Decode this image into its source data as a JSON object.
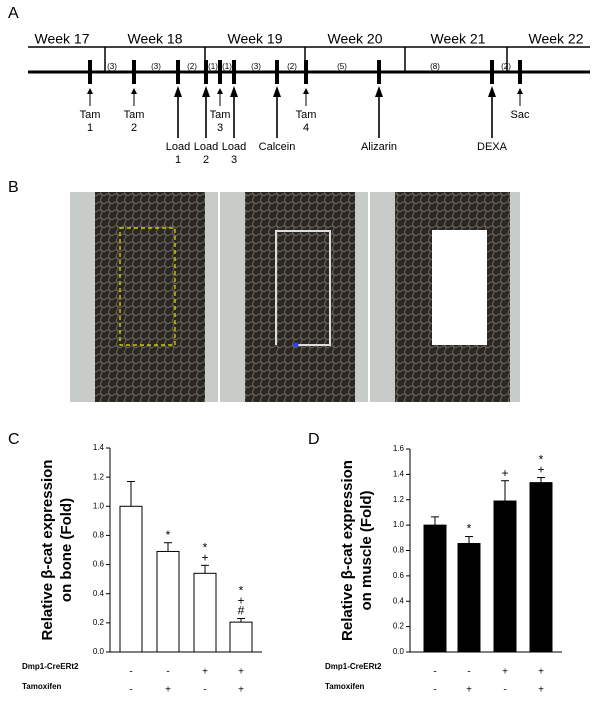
{
  "timeline": {
    "panel_label": "A",
    "weeks": [
      "Week 17",
      "Week 18",
      "Week 19",
      "Week 20",
      "Week 21",
      "Week 22"
    ],
    "intervals": [
      "(3)",
      "(3)",
      "(2)",
      "(1)",
      "(1)",
      "(3)",
      "(2)",
      "(5)",
      "(8)",
      "(2)"
    ],
    "events": [
      [
        "Tam",
        "1"
      ],
      [
        "Tam",
        "2"
      ],
      [
        "Load",
        "1"
      ],
      [
        "Load",
        "2"
      ],
      [
        "Tam",
        "3"
      ],
      [
        "Load",
        "3"
      ],
      [
        "Calcein"
      ],
      [
        "Tam",
        "4"
      ],
      [
        "Alizarin"
      ],
      [
        "DEXA"
      ],
      [
        "Sac"
      ]
    ]
  },
  "images": {
    "panel_label": "B"
  },
  "chart_data": [
    {
      "type": "bar",
      "panel_label": "C",
      "ylabel": [
        "Relative β-cat expression",
        "on bone (Fold)"
      ],
      "values": [
        1.0,
        0.69,
        0.54,
        0.205
      ],
      "errors": [
        0.17,
        0.06,
        0.055,
        0.025
      ],
      "annotations": [
        null,
        [
          "*"
        ],
        [
          "*",
          "+"
        ],
        [
          "*",
          "+",
          "#"
        ]
      ],
      "color": "#ffffff",
      "edgecolor": "#000000",
      "ylim": [
        0,
        1.4
      ],
      "yticks": [
        {
          "value": 0,
          "label": "0.0"
        },
        0.2,
        0.4,
        0.6,
        0.8,
        {
          "value": 1,
          "label": "1.0"
        },
        1.2,
        1.4
      ],
      "conditions": [
        {
          "name": "Dmp1-CreERt2",
          "values": [
            "-",
            "-",
            "+",
            "+"
          ]
        },
        {
          "name": "Tamoxifen",
          "values": [
            "-",
            "+",
            "-",
            "+"
          ]
        }
      ]
    },
    {
      "type": "bar",
      "panel_label": "D",
      "ylabel": [
        "Relative β-cat expression",
        "on muscle (Fold)"
      ],
      "values": [
        1.0,
        0.855,
        1.19,
        1.335
      ],
      "errors": [
        0.065,
        0.055,
        0.16,
        0.04
      ],
      "annotations": [
        null,
        [
          "*"
        ],
        [
          "+"
        ],
        [
          "*",
          "+"
        ]
      ],
      "color": "#000000",
      "edgecolor": "#000000",
      "ylim": [
        0,
        1.6
      ],
      "yticks": [
        {
          "value": 0,
          "label": "0.0"
        },
        0.2,
        0.4,
        0.6,
        0.8,
        {
          "value": 1,
          "label": "1.0"
        },
        1.2,
        1.4,
        1.6
      ],
      "conditions": [
        {
          "name": "Dmp1-CreERt2",
          "values": [
            "-",
            "-",
            "+",
            "+"
          ]
        },
        {
          "name": "Tamoxifen",
          "values": [
            "-",
            "+",
            "-",
            "+"
          ]
        }
      ]
    }
  ]
}
